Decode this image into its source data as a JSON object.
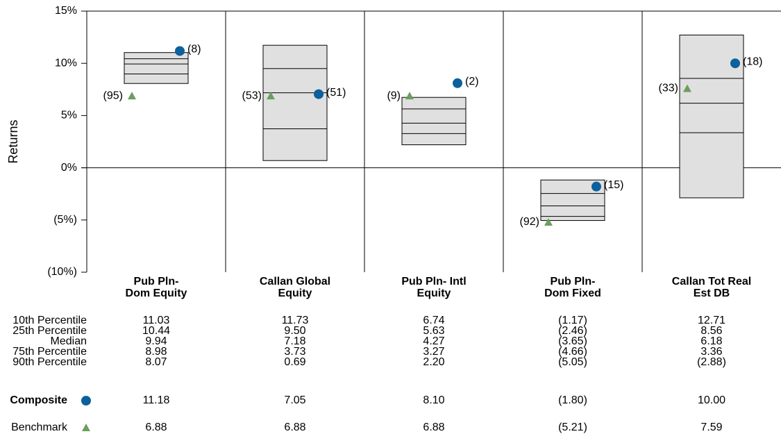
{
  "chart_data": {
    "type": "floating_box",
    "y_label": "Returns",
    "categories": [
      "Pub Pln-\nDom Equity",
      "Callan Global\nEquity",
      "Pub Pln- Intl\nEquity",
      "Pub Pln-\nDom Fixed",
      "Callan Tot Real\nEst DB"
    ],
    "ylim": [
      -10,
      15
    ],
    "yticks": [
      {
        "value": 15,
        "label": "15%"
      },
      {
        "value": 10,
        "label": "10%"
      },
      {
        "value": 5,
        "label": "5%"
      },
      {
        "value": 0,
        "label": "0%"
      },
      {
        "value": -5,
        "label": "(5%)"
      },
      {
        "value": -10,
        "label": "(10%)"
      }
    ],
    "box_color": "#e0e0e0",
    "negative_color": "#e8000b",
    "percentiles": [
      {
        "name": "10th Percentile",
        "values": [
          11.03,
          11.73,
          6.74,
          -1.17,
          12.71
        ],
        "value_labels": [
          "11.03",
          "11.73",
          "6.74",
          "(1.17)",
          "12.71"
        ]
      },
      {
        "name": "25th Percentile",
        "values": [
          10.44,
          9.5,
          5.63,
          -2.46,
          8.56
        ],
        "value_labels": [
          "10.44",
          "9.50",
          "5.63",
          "(2.46)",
          "8.56"
        ]
      },
      {
        "name": "Median",
        "values": [
          9.94,
          7.18,
          4.27,
          -3.65,
          6.18
        ],
        "value_labels": [
          "9.94",
          "7.18",
          "4.27",
          "(3.65)",
          "6.18"
        ]
      },
      {
        "name": "75th Percentile",
        "values": [
          8.98,
          3.73,
          3.27,
          -4.66,
          3.36
        ],
        "value_labels": [
          "8.98",
          "3.73",
          "3.27",
          "(4.66)",
          "3.36"
        ]
      },
      {
        "name": "90th Percentile",
        "values": [
          8.07,
          0.69,
          2.2,
          -5.05,
          -2.88
        ],
        "value_labels": [
          "8.07",
          "0.69",
          "2.20",
          "(5.05)",
          "(2.88)"
        ]
      }
    ],
    "series": [
      {
        "name": "Composite",
        "color": "#0b619b",
        "marker": "circle",
        "values": [
          11.18,
          7.05,
          8.1,
          -1.8,
          10.0
        ],
        "value_labels": [
          "11.18",
          "7.05",
          "8.10",
          "(1.80)",
          "10.00"
        ],
        "rank_labels": [
          "(8)",
          "(51)",
          "(2)",
          "(15)",
          "(18)"
        ]
      },
      {
        "name": "Benchmark",
        "color": "#6b9e5f",
        "marker": "triangle",
        "values": [
          6.88,
          6.88,
          6.88,
          -5.21,
          7.59
        ],
        "value_labels": [
          "6.88",
          "6.88",
          "6.88",
          "(5.21)",
          "7.59"
        ],
        "rank_labels": [
          "(95)",
          "(53)",
          "(9)",
          "(92)",
          "(33)"
        ]
      }
    ]
  }
}
